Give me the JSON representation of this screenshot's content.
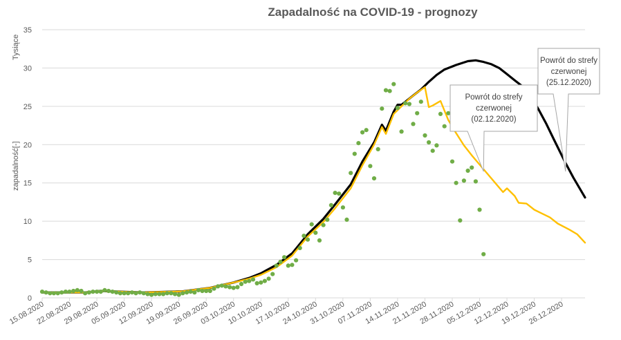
{
  "chart_data": {
    "type": "line",
    "title": "Zapadalność  na COVID-19 - prognozy",
    "ylabel": "zapadalność[-]",
    "yunit": "Tysiące",
    "ylim": [
      0,
      35
    ],
    "yticks": [
      "0",
      "5",
      "10",
      "15",
      "20",
      "25",
      "30",
      "35"
    ],
    "xticks": [
      "15.08.2020",
      "22.08.2020",
      "29.08.2020",
      "05.09.2020",
      "12.09.2020",
      "19.09.2020",
      "26.09.2020",
      "03.10.2020",
      "10.10.2020",
      "17.10.2020",
      "24.10.2020",
      "31.10.2020",
      "07.11.2020",
      "14.11.2020",
      "21.11.2020",
      "28.11.2020",
      "05.12.2020",
      "12.12.2020",
      "19.12.2020",
      "26.12.2020"
    ],
    "xrange": [
      "15.08.2020",
      "01.01.2021"
    ],
    "grid": "horizontal",
    "colors": {
      "observed": "#70ad47",
      "forecast_black": "#000000",
      "forecast_yellow": "#ffc000"
    },
    "series": [
      {
        "key": "observed",
        "style": "scatter",
        "points": [
          [
            "15.08.2020",
            0.8
          ],
          [
            "16.08.2020",
            0.7
          ],
          [
            "17.08.2020",
            0.6
          ],
          [
            "18.08.2020",
            0.6
          ],
          [
            "19.08.2020",
            0.6
          ],
          [
            "20.08.2020",
            0.7
          ],
          [
            "21.08.2020",
            0.8
          ],
          [
            "22.08.2020",
            0.8
          ],
          [
            "23.08.2020",
            0.9
          ],
          [
            "24.08.2020",
            1.0
          ],
          [
            "25.08.2020",
            0.9
          ],
          [
            "26.08.2020",
            0.6
          ],
          [
            "27.08.2020",
            0.7
          ],
          [
            "28.08.2020",
            0.8
          ],
          [
            "29.08.2020",
            0.8
          ],
          [
            "30.08.2020",
            0.8
          ],
          [
            "31.08.2020",
            1.0
          ],
          [
            "01.09.2020",
            0.9
          ],
          [
            "02.09.2020",
            0.8
          ],
          [
            "03.09.2020",
            0.7
          ],
          [
            "04.09.2020",
            0.6
          ],
          [
            "05.09.2020",
            0.6
          ],
          [
            "06.09.2020",
            0.6
          ],
          [
            "07.09.2020",
            0.7
          ],
          [
            "08.09.2020",
            0.6
          ],
          [
            "09.09.2020",
            0.7
          ],
          [
            "10.09.2020",
            0.6
          ],
          [
            "11.09.2020",
            0.5
          ],
          [
            "12.09.2020",
            0.4
          ],
          [
            "13.09.2020",
            0.5
          ],
          [
            "14.09.2020",
            0.5
          ],
          [
            "15.09.2020",
            0.5
          ],
          [
            "16.09.2020",
            0.6
          ],
          [
            "17.09.2020",
            0.6
          ],
          [
            "18.09.2020",
            0.5
          ],
          [
            "19.09.2020",
            0.4
          ],
          [
            "20.09.2020",
            0.6
          ],
          [
            "21.09.2020",
            0.7
          ],
          [
            "22.09.2020",
            0.8
          ],
          [
            "23.09.2020",
            0.7
          ],
          [
            "24.09.2020",
            1.0
          ],
          [
            "25.09.2020",
            0.9
          ],
          [
            "26.09.2020",
            0.9
          ],
          [
            "27.09.2020",
            0.9
          ],
          [
            "28.09.2020",
            1.2
          ],
          [
            "29.09.2020",
            1.5
          ],
          [
            "30.09.2020",
            1.6
          ],
          [
            "01.10.2020",
            1.5
          ],
          [
            "02.10.2020",
            1.4
          ],
          [
            "03.10.2020",
            1.3
          ],
          [
            "04.10.2020",
            1.4
          ],
          [
            "05.10.2020",
            1.8
          ],
          [
            "06.10.2020",
            2.1
          ],
          [
            "07.10.2020",
            2.2
          ],
          [
            "08.10.2020",
            2.4
          ],
          [
            "09.10.2020",
            1.9
          ],
          [
            "10.10.2020",
            2.0
          ],
          [
            "11.10.2020",
            2.2
          ],
          [
            "12.10.2020",
            2.5
          ],
          [
            "13.10.2020",
            3.1
          ],
          [
            "14.10.2020",
            4.2
          ],
          [
            "15.10.2020",
            4.7
          ],
          [
            "16.10.2020",
            5.3
          ],
          [
            "17.10.2020",
            4.2
          ],
          [
            "18.10.2020",
            4.3
          ],
          [
            "19.10.2020",
            4.9
          ],
          [
            "20.10.2020",
            6.5
          ],
          [
            "21.10.2020",
            8.1
          ],
          [
            "22.10.2020",
            7.6
          ],
          [
            "23.10.2020",
            9.6
          ],
          [
            "24.10.2020",
            8.5
          ],
          [
            "25.10.2020",
            7.5
          ],
          [
            "26.10.2020",
            9.5
          ],
          [
            "27.10.2020",
            10.2
          ],
          [
            "28.10.2020",
            12.1
          ],
          [
            "29.10.2020",
            13.7
          ],
          [
            "30.10.2020",
            13.6
          ],
          [
            "31.10.2020",
            11.8
          ],
          [
            "01.11.2020",
            10.2
          ],
          [
            "02.11.2020",
            16.3
          ],
          [
            "03.11.2020",
            18.8
          ],
          [
            "04.11.2020",
            20.2
          ],
          [
            "05.11.2020",
            21.6
          ],
          [
            "06.11.2020",
            21.9
          ],
          [
            "07.11.2020",
            17.2
          ],
          [
            "08.11.2020",
            15.6
          ],
          [
            "09.11.2020",
            19.4
          ],
          [
            "10.11.2020",
            24.7
          ],
          [
            "11.11.2020",
            27.1
          ],
          [
            "12.11.2020",
            27.0
          ],
          [
            "13.11.2020",
            27.9
          ],
          [
            "14.11.2020",
            24.8
          ],
          [
            "15.11.2020",
            21.7
          ],
          [
            "16.11.2020",
            25.4
          ],
          [
            "17.11.2020",
            25.3
          ],
          [
            "18.11.2020",
            22.7
          ],
          [
            "19.11.2020",
            24.1
          ],
          [
            "20.11.2020",
            25.6
          ],
          [
            "21.11.2020",
            21.2
          ],
          [
            "22.11.2020",
            20.3
          ],
          [
            "23.11.2020",
            19.2
          ],
          [
            "24.11.2020",
            19.9
          ],
          [
            "25.11.2020",
            24.0
          ],
          [
            "26.11.2020",
            22.4
          ],
          [
            "27.11.2020",
            24.1
          ],
          [
            "28.11.2020",
            17.8
          ],
          [
            "29.11.2020",
            15.0
          ],
          [
            "30.11.2020",
            10.1
          ],
          [
            "01.12.2020",
            15.3
          ],
          [
            "02.12.2020",
            16.6
          ],
          [
            "03.12.2020",
            17.0
          ],
          [
            "04.12.2020",
            15.2
          ],
          [
            "05.12.2020",
            11.5
          ],
          [
            "06.12.2020",
            5.7
          ]
        ]
      },
      {
        "key": "forecast_black",
        "style": "line",
        "points": [
          [
            "15.08.2020",
            0.7
          ],
          [
            "26.08.2020",
            0.7
          ],
          [
            "30.08.2020",
            0.9
          ],
          [
            "04.09.2020",
            0.8
          ],
          [
            "10.09.2020",
            0.7
          ],
          [
            "20.09.2020",
            0.85
          ],
          [
            "27.09.2020",
            1.3
          ],
          [
            "03.10.2020",
            2.0
          ],
          [
            "07.10.2020",
            2.6
          ],
          [
            "10.10.2020",
            3.2
          ],
          [
            "14.10.2020",
            4.3
          ],
          [
            "18.10.2020",
            5.8
          ],
          [
            "22.10.2020",
            8.3
          ],
          [
            "26.10.2020",
            10.3
          ],
          [
            "29.10.2020",
            12.2
          ],
          [
            "02.11.2020",
            14.8
          ],
          [
            "05.11.2020",
            17.8
          ],
          [
            "08.11.2020",
            20.3
          ],
          [
            "10.11.2020",
            22.6
          ],
          [
            "11.11.2020",
            21.8
          ],
          [
            "13.11.2020",
            24.3
          ],
          [
            "14.11.2020",
            25.2
          ],
          [
            "15.11.2020",
            25.2
          ],
          [
            "16.11.2020",
            25.6
          ],
          [
            "18.11.2020",
            26.4
          ],
          [
            "20.11.2020",
            27.2
          ],
          [
            "22.11.2020",
            28.2
          ],
          [
            "24.11.2020",
            29.1
          ],
          [
            "26.11.2020",
            29.8
          ],
          [
            "29.11.2020",
            30.4
          ],
          [
            "02.12.2020",
            30.9
          ],
          [
            "04.12.2020",
            31.0
          ],
          [
            "06.12.2020",
            30.8
          ],
          [
            "08.12.2020",
            30.5
          ],
          [
            "10.12.2020",
            30.0
          ],
          [
            "12.12.2020",
            29.2
          ],
          [
            "14.12.2020",
            28.4
          ],
          [
            "16.12.2020",
            27.6
          ],
          [
            "18.12.2020",
            26.3
          ],
          [
            "20.12.2020",
            24.7
          ],
          [
            "22.12.2020",
            22.8
          ],
          [
            "24.12.2020",
            20.7
          ],
          [
            "27.12.2020",
            17.6
          ],
          [
            "29.12.2020",
            15.7
          ],
          [
            "01.01.2021",
            13.1
          ]
        ]
      },
      {
        "key": "forecast_yellow",
        "style": "line",
        "points": [
          [
            "15.08.2020",
            0.7
          ],
          [
            "26.08.2020",
            0.7
          ],
          [
            "30.08.2020",
            0.9
          ],
          [
            "04.09.2020",
            0.8
          ],
          [
            "10.09.2020",
            0.7
          ],
          [
            "20.09.2020",
            0.85
          ],
          [
            "27.09.2020",
            1.3
          ],
          [
            "03.10.2020",
            2.0
          ],
          [
            "07.10.2020",
            2.5
          ],
          [
            "10.10.2020",
            3.0
          ],
          [
            "14.10.2020",
            4.0
          ],
          [
            "18.10.2020",
            5.5
          ],
          [
            "22.10.2020",
            8.0
          ],
          [
            "26.10.2020",
            9.9
          ],
          [
            "29.10.2020",
            11.7
          ],
          [
            "02.11.2020",
            14.3
          ],
          [
            "05.11.2020",
            17.3
          ],
          [
            "08.11.2020",
            20.0
          ],
          [
            "10.11.2020",
            22.3
          ],
          [
            "11.11.2020",
            21.4
          ],
          [
            "13.11.2020",
            24.0
          ],
          [
            "15.11.2020",
            25.0
          ],
          [
            "17.11.2020",
            26.0
          ],
          [
            "19.11.2020",
            26.8
          ],
          [
            "21.11.2020",
            27.5
          ],
          [
            "22.11.2020",
            24.9
          ],
          [
            "23.11.2020",
            25.1
          ],
          [
            "25.11.2020",
            25.7
          ],
          [
            "27.11.2020",
            23.2
          ],
          [
            "29.11.2020",
            21.5
          ],
          [
            "01.12.2020",
            19.9
          ],
          [
            "03.12.2020",
            18.6
          ],
          [
            "05.12.2020",
            17.4
          ],
          [
            "07.12.2020",
            16.2
          ],
          [
            "09.12.2020",
            15.0
          ],
          [
            "11.12.2020",
            13.8
          ],
          [
            "12.12.2020",
            14.3
          ],
          [
            "14.12.2020",
            13.3
          ],
          [
            "15.12.2020",
            12.4
          ],
          [
            "17.12.2020",
            12.3
          ],
          [
            "19.12.2020",
            11.5
          ],
          [
            "21.12.2020",
            11.0
          ],
          [
            "23.12.2020",
            10.5
          ],
          [
            "25.12.2020",
            9.7
          ],
          [
            "28.12.2020",
            8.9
          ],
          [
            "30.12.2020",
            8.3
          ],
          [
            "01.01.2021",
            7.2
          ]
        ]
      }
    ],
    "annotations": [
      {
        "lines": [
          "Powrót do strefy",
          "czerwonej",
          "(02.12.2020)"
        ],
        "target": [
          "06.12.2020",
          16.5
        ]
      },
      {
        "lines": [
          "Powrót do strefy",
          "czerwonej",
          "(25.12.2020)"
        ],
        "target": [
          "27.12.2020",
          16.5
        ]
      }
    ]
  }
}
